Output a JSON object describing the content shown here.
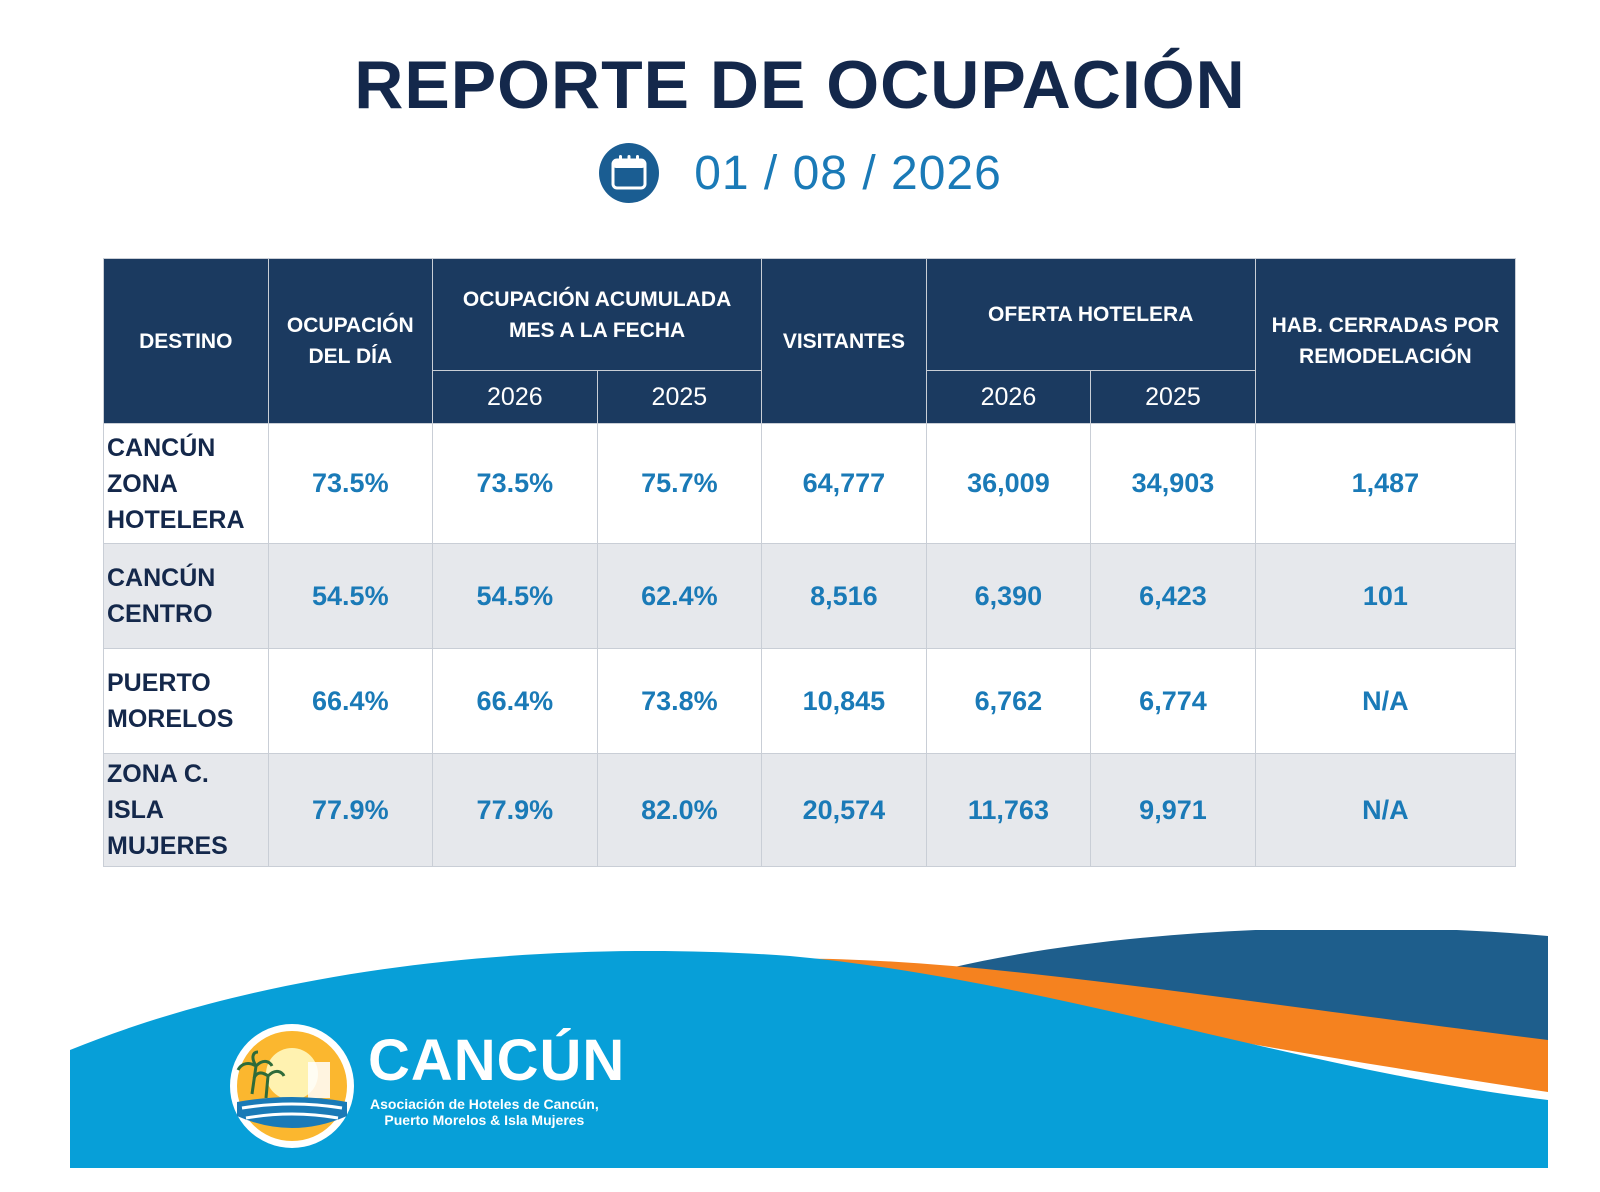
{
  "title": "REPORTE DE OCUPACIÓN",
  "date": "01 / 08 / 2026",
  "table": {
    "headers": {
      "destino": "DESTINO",
      "ocupacion_dia": "OCUPACIÓN DEL DÍA",
      "ocupacion_acumulada": "OCUPACIÓN ACUMULADA MES A LA FECHA",
      "visitantes": "VISITANTES",
      "oferta": "OFERTA HOTELERA",
      "cerradas": "HAB. CERRADAS POR REMODELACIÓN",
      "year_a": "2026",
      "year_b": "2025"
    },
    "rows": [
      {
        "destino": "CANCÚN ZONA HOTELERA",
        "ocup_dia": "73.5%",
        "acum_2026": "73.5%",
        "acum_2025": "75.7%",
        "visitantes": "64,777",
        "oferta_2026": "36,009",
        "oferta_2025": "34,903",
        "cerradas": "1,487"
      },
      {
        "destino": "CANCÚN CENTRO",
        "ocup_dia": "54.5%",
        "acum_2026": "54.5%",
        "acum_2025": "62.4%",
        "visitantes": "8,516",
        "oferta_2026": "6,390",
        "oferta_2025": "6,423",
        "cerradas": "101"
      },
      {
        "destino": "PUERTO MORELOS",
        "ocup_dia": "66.4%",
        "acum_2026": "66.4%",
        "acum_2025": "73.8%",
        "visitantes": "10,845",
        "oferta_2026": "6,762",
        "oferta_2025": "6,774",
        "cerradas": "N/A"
      },
      {
        "destino": "ZONA C. ISLA MUJERES",
        "ocup_dia": "77.9%",
        "acum_2026": "77.9%",
        "acum_2025": "82.0%",
        "visitantes": "20,574",
        "oferta_2026": "11,763",
        "oferta_2025": "9,971",
        "cerradas": "N/A"
      }
    ]
  },
  "footer": {
    "brand": "CANCÚN",
    "tagline_1": "Asociación de Hoteles de Cancún,",
    "tagline_2": "Puerto Morelos & Isla Mujeres"
  },
  "icons": {
    "date": "calendar-icon",
    "logo": "sun-palm-logo-icon"
  },
  "colors": {
    "title": "#14284b",
    "accent": "#1a7ab7",
    "header_bg": "#1b3a60",
    "stripe": "#e6e8ec",
    "wave_light": "#079fd8",
    "wave_orange": "#f5821f",
    "wave_dark": "#1e5e8c"
  }
}
